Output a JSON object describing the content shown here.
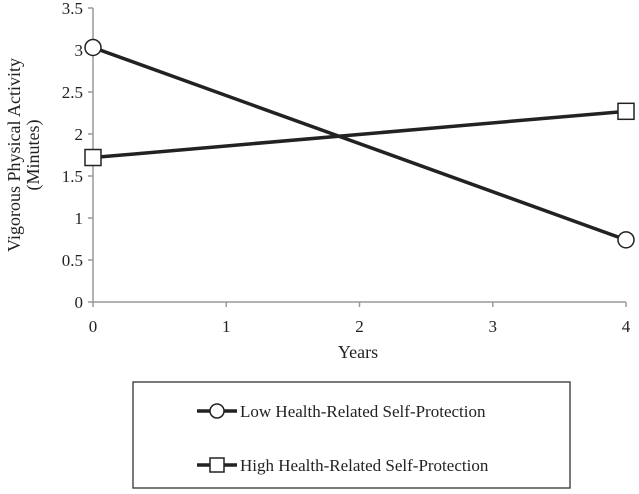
{
  "chart_data": {
    "type": "line",
    "title": "",
    "xlabel": "Years",
    "ylabel_lines": [
      "Vigorous Physical Activity",
      "(Minutes)"
    ],
    "x": [
      0,
      4
    ],
    "x_ticks": [
      0,
      1,
      2,
      3,
      4
    ],
    "x_tick_labels": [
      "0",
      "1",
      "2",
      "3",
      "4"
    ],
    "xlim": [
      0,
      4
    ],
    "y_ticks": [
      0,
      0.5,
      1,
      1.5,
      2,
      2.5,
      3,
      3.5
    ],
    "y_tick_labels": [
      "0",
      "0.5",
      "1",
      "1.5",
      "2",
      "2.5",
      "3",
      "3.5"
    ],
    "ylim": [
      0,
      3.5
    ],
    "grid": false,
    "legend_position": "bottom",
    "series": [
      {
        "name": "Low Health-Related Self-Protection",
        "marker": "circle",
        "color": "#222222",
        "values": [
          3.03,
          0.74
        ]
      },
      {
        "name": "High Health-Related Self-Protection",
        "marker": "square",
        "color": "#222222",
        "values": [
          1.72,
          2.27
        ]
      }
    ]
  }
}
